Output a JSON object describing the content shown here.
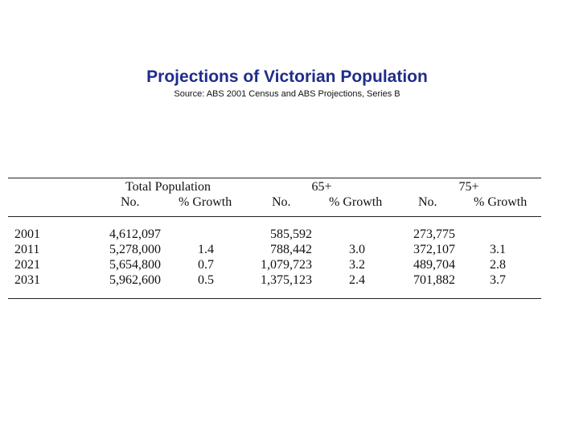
{
  "title": "Projections of Victorian Population",
  "subtitle": "Source: ABS 2001 Census and ABS Projections, Series B",
  "table": {
    "group_headers": [
      "Total Population",
      "65+",
      "75+"
    ],
    "sub_headers": [
      "No.",
      "% Growth",
      "No.",
      "% Growth",
      "No.",
      "% Growth"
    ],
    "rows": [
      {
        "year": "2001",
        "total_no": "4,612,097",
        "total_growth": "",
        "s65_no": "585,592",
        "s65_growth": "",
        "s75_no": "273,775",
        "s75_growth": ""
      },
      {
        "year": "2011",
        "total_no": "5,278,000",
        "total_growth": "1.4",
        "s65_no": "788,442",
        "s65_growth": "3.0",
        "s75_no": "372,107",
        "s75_growth": "3.1"
      },
      {
        "year": "2021",
        "total_no": "5,654,800",
        "total_growth": "0.7",
        "s65_no": "1,079,723",
        "s65_growth": "3.2",
        "s75_no": "489,704",
        "s75_growth": "2.8"
      },
      {
        "year": "2031",
        "total_no": "5,962,600",
        "total_growth": "0.5",
        "s65_no": "1,375,123",
        "s65_growth": "2.4",
        "s75_no": "701,882",
        "s75_growth": "3.7"
      }
    ]
  }
}
